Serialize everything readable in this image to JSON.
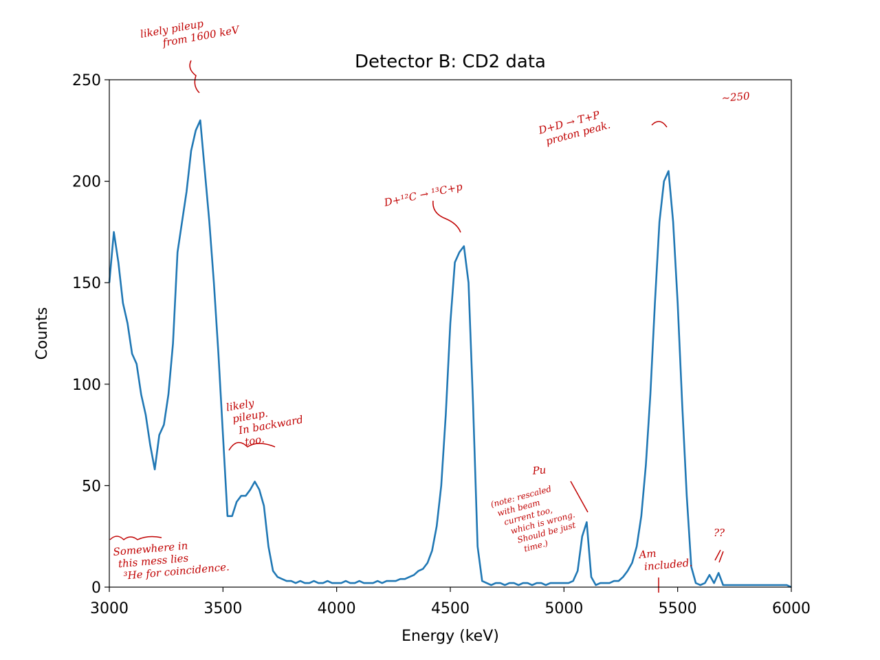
{
  "chart_data": {
    "type": "line",
    "title": "Detector B: CD2 data",
    "xlabel": "Energy (keV)",
    "ylabel": "Counts",
    "x": [
      3000,
      3020,
      3040,
      3060,
      3080,
      3100,
      3120,
      3140,
      3160,
      3180,
      3200,
      3220,
      3240,
      3260,
      3280,
      3300,
      3320,
      3340,
      3360,
      3380,
      3400,
      3420,
      3440,
      3460,
      3480,
      3500,
      3520,
      3540,
      3560,
      3580,
      3600,
      3620,
      3640,
      3660,
      3680,
      3700,
      3720,
      3740,
      3760,
      3780,
      3800,
      3820,
      3840,
      3860,
      3880,
      3900,
      3920,
      3940,
      3960,
      3980,
      4000,
      4020,
      4040,
      4060,
      4080,
      4100,
      4120,
      4140,
      4160,
      4180,
      4200,
      4220,
      4240,
      4260,
      4280,
      4300,
      4320,
      4340,
      4360,
      4380,
      4400,
      4420,
      4440,
      4460,
      4480,
      4500,
      4520,
      4540,
      4560,
      4580,
      4600,
      4620,
      4640,
      4660,
      4680,
      4700,
      4720,
      4740,
      4760,
      4780,
      4800,
      4820,
      4840,
      4860,
      4880,
      4900,
      4920,
      4940,
      4960,
      4980,
      5000,
      5020,
      5040,
      5060,
      5080,
      5100,
      5120,
      5140,
      5160,
      5180,
      5200,
      5220,
      5240,
      5260,
      5280,
      5300,
      5320,
      5340,
      5360,
      5380,
      5400,
      5420,
      5440,
      5460,
      5480,
      5500,
      5520,
      5540,
      5560,
      5580,
      5600,
      5620,
      5640,
      5660,
      5680,
      5700,
      5720,
      5740,
      5760,
      5780,
      5800,
      5820,
      5840,
      5860,
      5880,
      5900,
      5920,
      5940,
      5960,
      5980,
      6000
    ],
    "series": [
      {
        "color": "#1f77b4",
        "values": [
          150,
          175,
          160,
          140,
          130,
          115,
          110,
          95,
          85,
          70,
          58,
          75,
          80,
          95,
          120,
          165,
          180,
          195,
          215,
          225,
          230,
          205,
          180,
          150,
          115,
          75,
          35,
          35,
          42,
          45,
          45,
          48,
          52,
          48,
          40,
          20,
          8,
          5,
          4,
          3,
          3,
          2,
          3,
          2,
          2,
          3,
          2,
          2,
          3,
          2,
          2,
          2,
          3,
          2,
          2,
          3,
          2,
          2,
          2,
          3,
          2,
          3,
          3,
          3,
          4,
          4,
          5,
          6,
          8,
          9,
          12,
          18,
          30,
          50,
          85,
          130,
          160,
          165,
          168,
          150,
          90,
          20,
          3,
          2,
          1,
          2,
          2,
          1,
          2,
          2,
          1,
          2,
          2,
          1,
          2,
          2,
          1,
          2,
          2,
          2,
          2,
          2,
          3,
          8,
          25,
          32,
          5,
          1,
          2,
          2,
          2,
          3,
          3,
          5,
          8,
          12,
          20,
          35,
          60,
          95,
          140,
          180,
          200,
          205,
          180,
          140,
          90,
          45,
          10,
          2,
          1,
          2,
          6,
          2,
          7,
          1,
          1,
          1,
          1,
          1,
          1,
          1,
          1,
          1,
          1,
          1,
          1,
          1,
          1,
          1,
          0
        ]
      }
    ],
    "xlim": [
      3000,
      6000
    ],
    "ylim": [
      0,
      250
    ],
    "xticks": [
      3000,
      3500,
      4000,
      4500,
      5000,
      5500,
      6000
    ],
    "yticks": [
      0,
      50,
      100,
      150,
      200,
      250
    ],
    "annotation_color": "#c00000",
    "annotations": [
      [
        "likely pileup",
        "from 1600 keV"
      ],
      [
        "D+¹²C → ¹³C+p"
      ],
      [
        "D+D → T+P",
        "proton peak."
      ],
      [
        "~250"
      ],
      [
        "likely",
        "pileup.",
        "In backward",
        "too."
      ],
      [
        "Somewhere in",
        "this mess lies",
        "³He for coincidence."
      ],
      [
        "Pu"
      ],
      [
        "(note: rescaled",
        "with beam",
        "current too,",
        "which is wrong.",
        "Should be just",
        "time.)"
      ],
      [
        "Am",
        "included."
      ],
      [
        "??"
      ]
    ]
  }
}
